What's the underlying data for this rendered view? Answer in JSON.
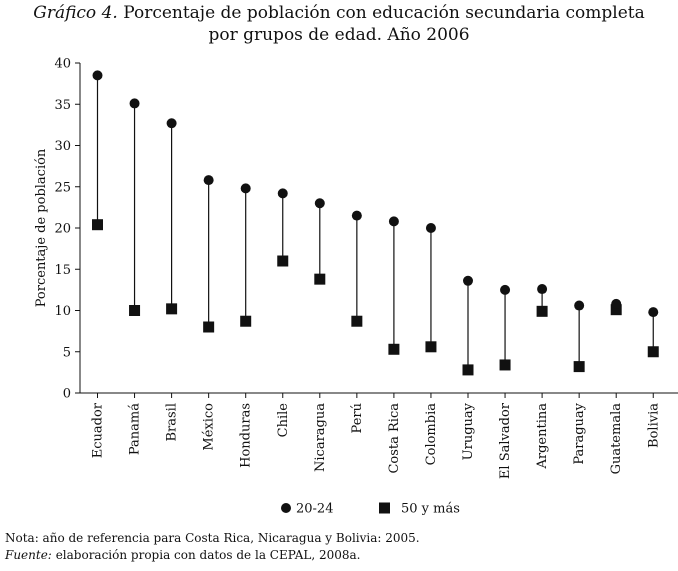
{
  "title": {
    "lead": "Gráfico 4.",
    "line1": "Porcentaje de población con educación secundaria completa",
    "line2": "por grupos de edad. Año 2006"
  },
  "notes": {
    "nota": "Nota: año de referencia para Costa Rica, Nicaragua y Bolivia: 2005.",
    "fuente_label": "Fuente:",
    "fuente_text": "elaboración propia con datos de la CEPAL, 2008a."
  },
  "chart_data": {
    "type": "dot-range",
    "title": "Porcentaje de población con educación secundaria completa por grupos de edad. Año 2006",
    "xlabel": "",
    "ylabel": "Porcentaje de población",
    "ylim": [
      0,
      40
    ],
    "yticks": [
      "0",
      "5",
      "10",
      "15",
      "20",
      "25",
      "30",
      "35",
      "40"
    ],
    "categories": [
      "Ecuador",
      "Panamá",
      "Brasil",
      "México",
      "Honduras",
      "Chile",
      "Nicaragua",
      "Perú",
      "Costa Rica",
      "Colombia",
      "Uruguay",
      "El Salvador",
      "Argentina",
      "Paraguay",
      "Guatemala",
      "Bolivia"
    ],
    "series": [
      {
        "name": "20-24",
        "marker": "circle",
        "values": [
          38.5,
          35.1,
          32.7,
          25.8,
          24.8,
          24.2,
          23.0,
          21.5,
          20.8,
          20.0,
          13.6,
          12.5,
          12.6,
          10.6,
          10.8,
          9.8
        ]
      },
      {
        "name": "50 y más",
        "marker": "square",
        "values": [
          20.4,
          10.0,
          10.2,
          8.0,
          8.7,
          16.0,
          13.8,
          8.7,
          5.3,
          5.6,
          2.8,
          3.4,
          9.9,
          3.2,
          10.1,
          5.0
        ]
      }
    ],
    "legend": "bottom-center",
    "grid": false,
    "colors": {
      "ink": "#111111"
    }
  }
}
